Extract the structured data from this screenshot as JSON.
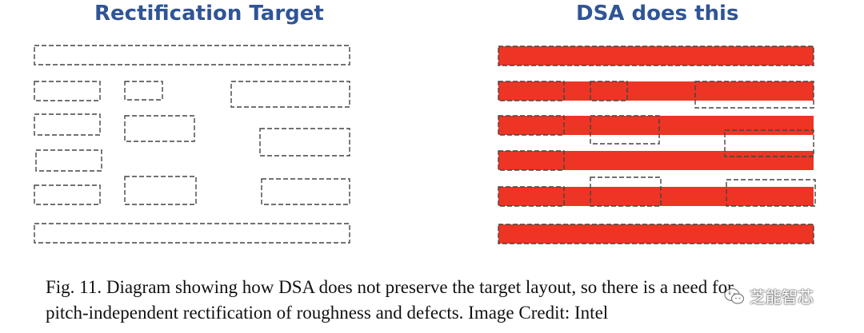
{
  "panels": {
    "left_title": "Rectification Target",
    "right_title": "DSA does this"
  },
  "colors": {
    "title": "#2f5597",
    "bar_fill": "#ee3424",
    "dash_stroke": "#444444"
  },
  "caption": {
    "line1": "Fig. 11. Diagram showing how DSA does not preserve the target layout, so there is a need for",
    "line2": "pitch-independent rectification of roughness and defects. Image Credit: Intel"
  },
  "watermark": {
    "text": "芝能智芯",
    "icon": "wechat-icon"
  }
}
